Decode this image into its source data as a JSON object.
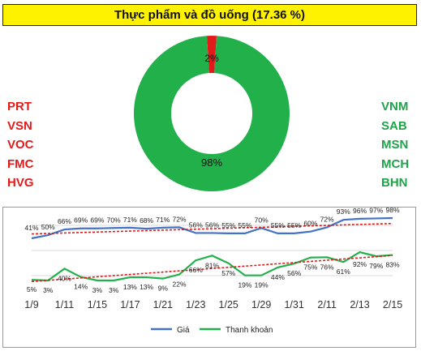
{
  "title": "Thực phẩm và đồ uống (17.36 %)",
  "left_stocks": [
    "PRT",
    "VSN",
    "VOC",
    "FMC",
    "HVG"
  ],
  "right_stocks": [
    "VNM",
    "SAB",
    "MSN",
    "MCH",
    "BHN"
  ],
  "colors": {
    "red": "#e21a1a",
    "green": "#22b04b",
    "blue": "#4472c4",
    "trend": "#e21a1a"
  },
  "chart_data": [
    {
      "type": "pie",
      "style": "donut",
      "slices": [
        {
          "label": "2%",
          "value": 2,
          "color": "#e21a1a"
        },
        {
          "label": "98%",
          "value": 98,
          "color": "#22b04b"
        }
      ]
    },
    {
      "type": "line",
      "x_tick_labels": [
        "1/9",
        "1/11",
        "1/15",
        "1/17",
        "1/21",
        "1/23",
        "1/25",
        "1/29",
        "1/31",
        "2/11",
        "2/13",
        "2/15"
      ],
      "series": [
        {
          "name": "Giá",
          "color": "#4472c4",
          "values": [
            41,
            50,
            66,
            69,
            69,
            70,
            71,
            68,
            71,
            72,
            56,
            56,
            55,
            55,
            70,
            55,
            55,
            60,
            72,
            93,
            96,
            97,
            98
          ],
          "labels": [
            "41%",
            "50%",
            "66%",
            "69%",
            "69%",
            "70%",
            "71%",
            "68%",
            "71%",
            "72%",
            "56%",
            "56%",
            "55%",
            "55%",
            "70%",
            "55%",
            "55%",
            "60%",
            "72%",
            "93%",
            "96%",
            "97%",
            "98%"
          ]
        },
        {
          "name": "Thanh khoản",
          "color": "#22b04b",
          "values": [
            5,
            3,
            40,
            14,
            3,
            3,
            13,
            13,
            9,
            22,
            66,
            81,
            57,
            19,
            19,
            44,
            56,
            75,
            76,
            61,
            92,
            79,
            83
          ],
          "labels": [
            "5%",
            "3%",
            "40%",
            "14%",
            "3%",
            "3%",
            "13%",
            "13%",
            "9%",
            "22%",
            "66%",
            "81%",
            "57%",
            "19%",
            "19%",
            "44%",
            "56%",
            "75%",
            "76%",
            "61%",
            "92%",
            "79%",
            "83%"
          ]
        }
      ],
      "legend_position": "bottom",
      "trendlines": true
    }
  ]
}
